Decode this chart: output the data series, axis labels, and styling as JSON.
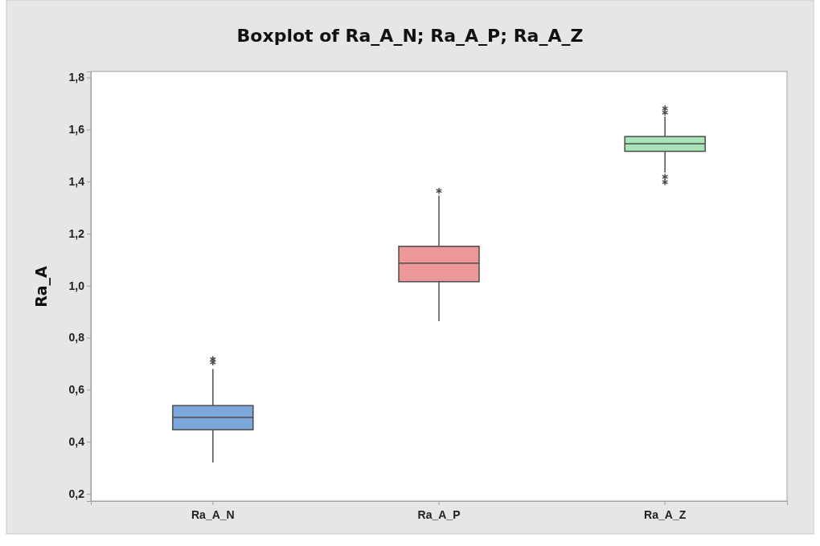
{
  "chart_data": {
    "type": "box",
    "title": "Boxplot of Ra_A_N; Ra_A_P; Ra_A_Z",
    "ylabel": "Ra_A",
    "categories": [
      "Ra_A_N",
      "Ra_A_P",
      "Ra_A_Z"
    ],
    "boxes": [
      {
        "low": 0.32,
        "q1": 0.446,
        "median": 0.494,
        "q3": 0.539,
        "high": 0.68,
        "outliers": [
          0.705,
          0.717
        ]
      },
      {
        "low": 0.863,
        "q1": 1.015,
        "median": 1.086,
        "q3": 1.151,
        "high": 1.346,
        "outliers": [
          1.364
        ]
      },
      {
        "low": 1.434,
        "q1": 1.516,
        "median": 1.545,
        "q3": 1.573,
        "high": 1.65,
        "outliers": [
          1.665,
          1.681,
          1.418,
          1.398
        ]
      }
    ],
    "colors": [
      "#7ba7db",
      "#ec9898",
      "#a8e4b8"
    ],
    "ylim": [
      0.172,
      1.823
    ],
    "yticks": [
      {
        "value": 0.2,
        "label": "0,2"
      },
      {
        "value": 0.4,
        "label": "0,4"
      },
      {
        "value": 0.6,
        "label": "0,6"
      },
      {
        "value": 0.8,
        "label": "0,8"
      },
      {
        "value": 1.0,
        "label": "1,0"
      },
      {
        "value": 1.2,
        "label": "1,2"
      },
      {
        "value": 1.4,
        "label": "1,4"
      },
      {
        "value": 1.6,
        "label": "1,6"
      },
      {
        "value": 1.8,
        "label": "1,8"
      }
    ],
    "grid": false
  }
}
